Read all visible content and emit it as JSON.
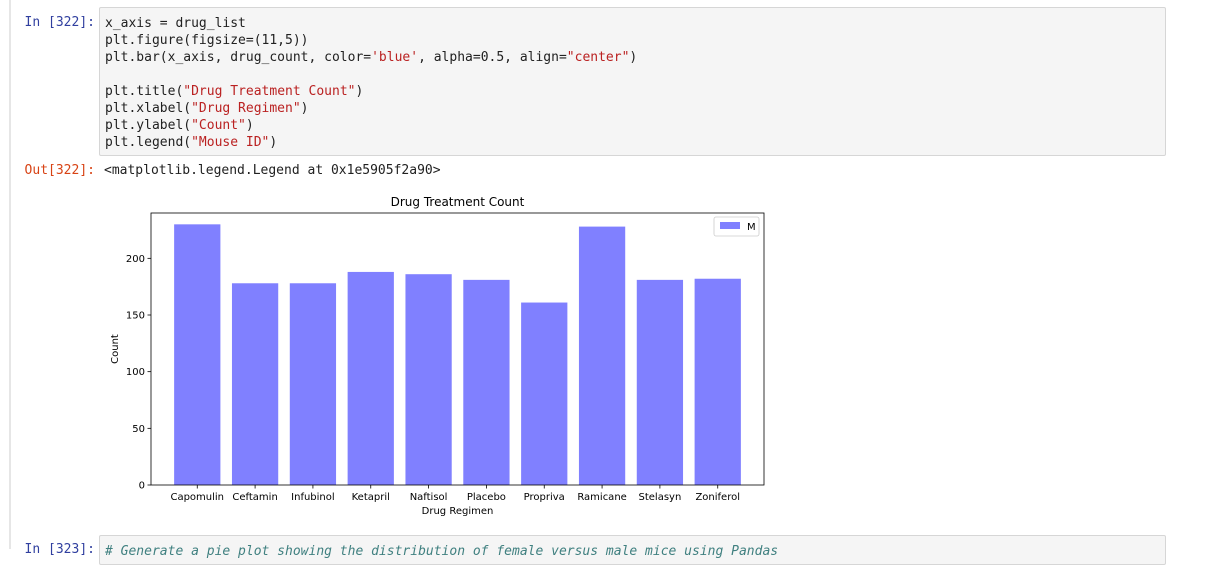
{
  "cell1": {
    "prompt_in": "In [322]:",
    "prompt_out": "Out[322]:",
    "code": [
      [
        {
          "t": "x_axis = drug_list",
          "c": ""
        }
      ],
      [
        {
          "t": "plt.figure(figsize=(11,5))",
          "c": ""
        }
      ],
      [
        {
          "t": "plt.bar(x_axis, drug_count, color=",
          "c": ""
        },
        {
          "t": "'blue'",
          "c": "s"
        },
        {
          "t": ", alpha=0.5, align=",
          "c": ""
        },
        {
          "t": "\"center\"",
          "c": "s"
        },
        {
          "t": ")",
          "c": ""
        }
      ],
      [
        {
          "t": "",
          "c": ""
        }
      ],
      [
        {
          "t": "plt.title(",
          "c": ""
        },
        {
          "t": "\"Drug Treatment Count\"",
          "c": "s"
        },
        {
          "t": ")",
          "c": ""
        }
      ],
      [
        {
          "t": "plt.xlabel(",
          "c": ""
        },
        {
          "t": "\"Drug Regimen\"",
          "c": "s"
        },
        {
          "t": ")",
          "c": ""
        }
      ],
      [
        {
          "t": "plt.ylabel(",
          "c": ""
        },
        {
          "t": "\"Count\"",
          "c": "s"
        },
        {
          "t": ")",
          "c": ""
        }
      ],
      [
        {
          "t": "plt.legend(",
          "c": ""
        },
        {
          "t": "\"Mouse ID\"",
          "c": "s"
        },
        {
          "t": ")",
          "c": ""
        }
      ]
    ],
    "output_text": "<matplotlib.legend.Legend at 0x1e5905f2a90>"
  },
  "cell2": {
    "prompt_in": "In [323]:",
    "code_first_line": "# Generate a pie plot showing the distribution of female versus male mice using Pandas"
  },
  "chart_data": {
    "type": "bar",
    "title": "Drug Treatment Count",
    "xlabel": "Drug Regimen",
    "ylabel": "Count",
    "categories": [
      "Capomulin",
      "Ceftamin",
      "Infubinol",
      "Ketapril",
      "Naftisol",
      "Placebo",
      "Propriva",
      "Ramicane",
      "Stelasyn",
      "Zoniferol"
    ],
    "values": [
      230,
      178,
      178,
      188,
      186,
      181,
      161,
      228,
      181,
      182
    ],
    "ylim": [
      0,
      240
    ],
    "yticks": [
      0,
      50,
      100,
      150,
      200
    ],
    "legend": [
      "M"
    ],
    "legend_position": "upper right",
    "bar_color": "#8080ff",
    "grid": false
  }
}
